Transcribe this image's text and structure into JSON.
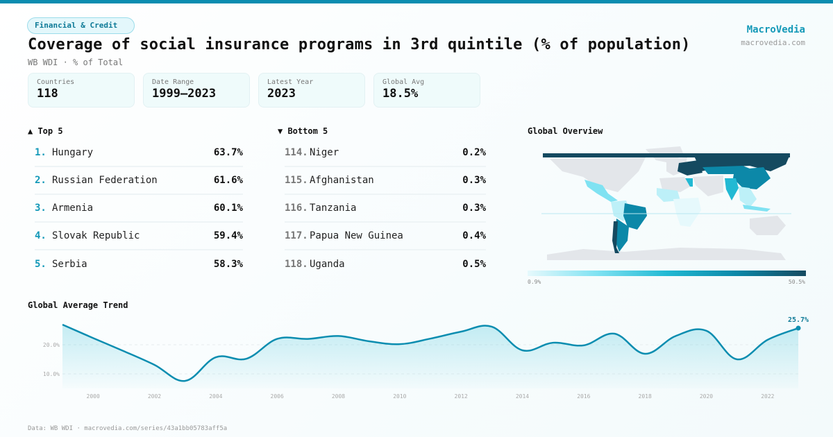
{
  "header": {
    "category": "Financial & Credit",
    "title": "Coverage of social insurance programs in 3rd quintile (% of population)",
    "subtitle": "WB WDI · % of Total",
    "brand": "MacroVedia",
    "brand_url": "macrovedia.com"
  },
  "stats": [
    {
      "label": "Countries",
      "value": "118"
    },
    {
      "label": "Date Range",
      "value": "1999–2023"
    },
    {
      "label": "Latest Year",
      "value": "2023"
    },
    {
      "label": "Global Avg",
      "value": "18.5%"
    }
  ],
  "top5": {
    "heading": "▲ Top 5",
    "items": [
      {
        "rank": "1.",
        "name": "Hungary",
        "value": "63.7%"
      },
      {
        "rank": "2.",
        "name": "Russian Federation",
        "value": "61.6%"
      },
      {
        "rank": "3.",
        "name": "Armenia",
        "value": "60.1%"
      },
      {
        "rank": "4.",
        "name": "Slovak Republic",
        "value": "59.4%"
      },
      {
        "rank": "5.",
        "name": "Serbia",
        "value": "58.3%"
      }
    ]
  },
  "bottom5": {
    "heading": "▼ Bottom 5",
    "items": [
      {
        "rank": "114.",
        "name": "Niger",
        "value": "0.2%"
      },
      {
        "rank": "115.",
        "name": "Afghanistan",
        "value": "0.3%"
      },
      {
        "rank": "116.",
        "name": "Tanzania",
        "value": "0.3%"
      },
      {
        "rank": "117.",
        "name": "Papua New Guinea",
        "value": "0.4%"
      },
      {
        "rank": "118.",
        "name": "Uganda",
        "value": "0.5%"
      }
    ]
  },
  "map": {
    "heading": "Global Overview",
    "scale_min": "0.9%",
    "scale_max": "50.5%",
    "colors": {
      "none": "#e3e6ea",
      "low": "#e6f9fc",
      "mid_low": "#7fe2f2",
      "mid": "#22b9d3",
      "high": "#0c88a8",
      "max": "#154a60"
    }
  },
  "chart_data": {
    "type": "area",
    "title": "Global Average Trend",
    "xlabel": "",
    "ylabel": "",
    "x": [
      1999,
      2000,
      2001,
      2002,
      2003,
      2004,
      2005,
      2006,
      2007,
      2008,
      2009,
      2010,
      2011,
      2012,
      2013,
      2014,
      2015,
      2016,
      2017,
      2018,
      2019,
      2020,
      2021,
      2022,
      2023
    ],
    "series": [
      {
        "name": "Global Average",
        "values": [
          26.9,
          22.3,
          17.8,
          13.1,
          7.6,
          15.7,
          15.2,
          22.0,
          22.0,
          23.0,
          21.2,
          20.2,
          22.1,
          24.5,
          26.2,
          18.1,
          20.7,
          19.8,
          23.8,
          16.9,
          23.0,
          24.8,
          15.0,
          21.7,
          25.7
        ]
      }
    ],
    "x_ticks": [
      "2000",
      "2002",
      "2004",
      "2006",
      "2008",
      "2010",
      "2012",
      "2014",
      "2016",
      "2018",
      "2020",
      "2022"
    ],
    "y_ticks": [
      "10.0%",
      "20.0%"
    ],
    "y_tick_values": [
      10,
      20
    ],
    "ylim": [
      4,
      28
    ],
    "grid": true,
    "last_label": "25.7%",
    "line_color": "#0b8db0"
  },
  "footer": "Data: WB WDI · macrovedia.com/series/43a1bb05783aff5a"
}
